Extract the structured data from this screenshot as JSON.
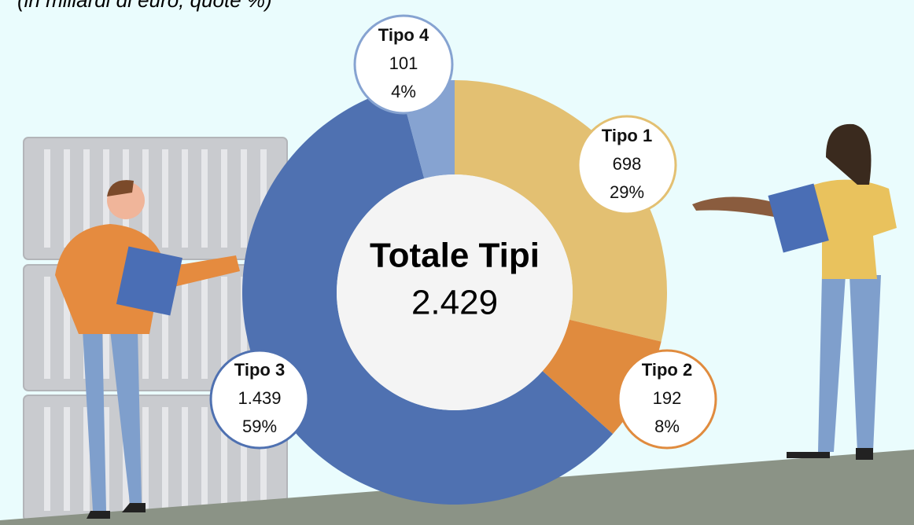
{
  "chart_data": {
    "type": "donut",
    "subtitle": "(in miliardi di euro, quote %)",
    "center_title": "Totale Tipi",
    "center_value": "2.429",
    "categories": [
      "Tipo 1",
      "Tipo 2",
      "Tipo 3",
      "Tipo 4"
    ],
    "values": [
      698,
      192,
      1439,
      101
    ],
    "value_labels": [
      "698",
      "192",
      "1.439",
      "101"
    ],
    "percent_labels": [
      "29%",
      "8%",
      "59%",
      "4%"
    ],
    "colors": [
      "#e3c072",
      "#e08b3e",
      "#4f71b1",
      "#86a3d1"
    ]
  }
}
